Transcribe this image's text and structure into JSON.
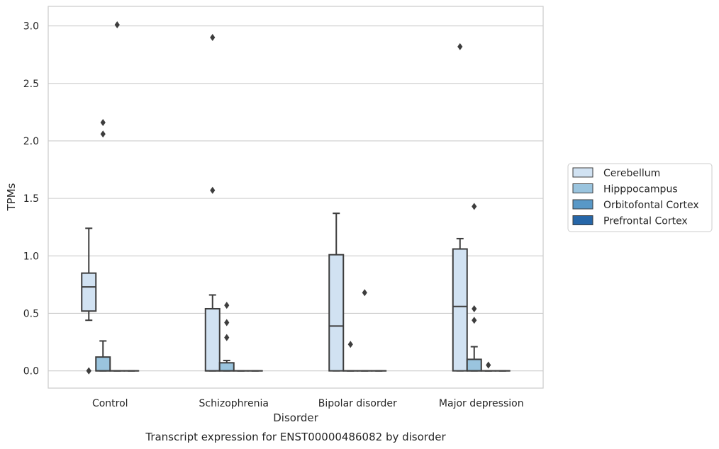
{
  "chart_data": {
    "type": "box",
    "caption": "Transcript expression for ENST00000486082 by disorder",
    "xlabel": "Disorder",
    "ylabel": "TPMs",
    "ylim": [
      -0.15,
      3.17
    ],
    "yticks": [
      "0.0",
      "0.5",
      "1.0",
      "1.5",
      "2.0",
      "2.5",
      "3.0"
    ],
    "categories": [
      "Control",
      "Schizophrenia",
      "Bipolar disorder",
      "Major depression"
    ],
    "grid": "horizontal",
    "legend_position": "right",
    "series": [
      {
        "name": "Cerebellum",
        "color": "#d1e2f2",
        "boxes": [
          {
            "q1": 0.52,
            "median": 0.73,
            "q3": 0.85,
            "whisker_low": 0.44,
            "whisker_high": 1.24,
            "outliers": [
              0.0,
              0.0
            ]
          },
          {
            "q1": 0.0,
            "median": 0.0,
            "q3": 0.54,
            "whisker_low": 0.0,
            "whisker_high": 0.66,
            "outliers": [
              1.57,
              2.9
            ]
          },
          {
            "q1": 0.0,
            "median": 0.39,
            "q3": 1.01,
            "whisker_low": 0.0,
            "whisker_high": 1.37,
            "outliers": []
          },
          {
            "q1": 0.0,
            "median": 0.56,
            "q3": 1.06,
            "whisker_low": 0.0,
            "whisker_high": 1.15,
            "outliers": [
              2.82
            ]
          }
        ]
      },
      {
        "name": "Hipppocampus",
        "color": "#9ac4de",
        "boxes": [
          {
            "q1": 0.0,
            "median": 0.0,
            "q3": 0.12,
            "whisker_low": 0.0,
            "whisker_high": 0.26,
            "outliers": [
              2.06,
              2.16
            ]
          },
          {
            "q1": 0.0,
            "median": 0.0,
            "q3": 0.07,
            "whisker_low": 0.0,
            "whisker_high": 0.09,
            "outliers": [
              0.29,
              0.42,
              0.57
            ]
          },
          {
            "q1": 0.0,
            "median": 0.0,
            "q3": 0.0,
            "whisker_low": 0.0,
            "whisker_high": 0.0,
            "outliers": [
              0.23
            ]
          },
          {
            "q1": 0.0,
            "median": 0.0,
            "q3": 0.1,
            "whisker_low": 0.0,
            "whisker_high": 0.21,
            "outliers": [
              0.44,
              0.54,
              1.43
            ]
          }
        ]
      },
      {
        "name": "Orbitofontal Cortex",
        "color": "#5898c7",
        "boxes": [
          {
            "q1": 0.0,
            "median": 0.0,
            "q3": 0.0,
            "whisker_low": 0.0,
            "whisker_high": 0.0,
            "outliers": [
              3.01
            ]
          },
          {
            "q1": 0.0,
            "median": 0.0,
            "q3": 0.0,
            "whisker_low": 0.0,
            "whisker_high": 0.0,
            "outliers": []
          },
          {
            "q1": 0.0,
            "median": 0.0,
            "q3": 0.0,
            "whisker_low": 0.0,
            "whisker_high": 0.0,
            "outliers": [
              0.68
            ]
          },
          {
            "q1": 0.0,
            "median": 0.0,
            "q3": 0.0,
            "whisker_low": 0.0,
            "whisker_high": 0.0,
            "outliers": [
              0.05
            ]
          }
        ]
      },
      {
        "name": "Prefrontal Cortex",
        "color": "#2666a8",
        "boxes": [
          {
            "q1": 0.0,
            "median": 0.0,
            "q3": 0.0,
            "whisker_low": 0.0,
            "whisker_high": 0.0,
            "outliers": []
          },
          {
            "q1": 0.0,
            "median": 0.0,
            "q3": 0.0,
            "whisker_low": 0.0,
            "whisker_high": 0.0,
            "outliers": []
          },
          {
            "q1": 0.0,
            "median": 0.0,
            "q3": 0.0,
            "whisker_low": 0.0,
            "whisker_high": 0.0,
            "outliers": []
          },
          {
            "q1": 0.0,
            "median": 0.0,
            "q3": 0.0,
            "whisker_low": 0.0,
            "whisker_high": 0.0,
            "outliers": []
          }
        ]
      }
    ]
  }
}
